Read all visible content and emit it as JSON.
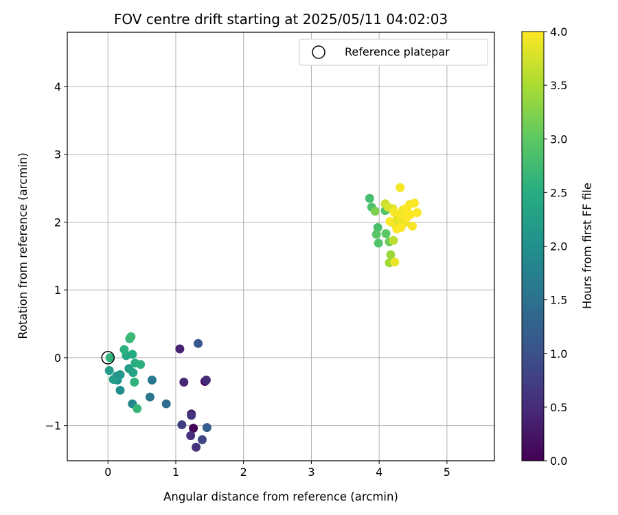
{
  "chart_data": {
    "type": "scatter",
    "title": "FOV centre drift starting at 2025/05/11 04:02:03",
    "xlabel": "Angular distance from reference (arcmin)",
    "ylabel": "Rotation from reference (arcmin)",
    "xlim": [
      -0.6,
      5.7
    ],
    "ylim": [
      -1.52,
      4.8
    ],
    "xticks": [
      0,
      1,
      2,
      3,
      4,
      5
    ],
    "yticks": [
      -1,
      0,
      1,
      2,
      3,
      4
    ],
    "grid": true,
    "legend": {
      "placement": "top-right",
      "entries": [
        "Reference platepar"
      ]
    },
    "reference_point": {
      "x": 0,
      "y": 0,
      "marker": "open-circle"
    },
    "colorbar": {
      "label": "Hours from first FF file",
      "colormap": "viridis",
      "range": [
        0.0,
        4.0
      ],
      "ticks": [
        "0.0",
        "0.5",
        "1.0",
        "1.5",
        "2.0",
        "2.5",
        "3.0",
        "3.5",
        "4.0"
      ]
    },
    "points": [
      {
        "x": 1.26,
        "y": -1.04,
        "t": 0.02
      },
      {
        "x": 1.43,
        "y": -0.35,
        "t": 0.1
      },
      {
        "x": 1.23,
        "y": -0.83,
        "t": 0.15
      },
      {
        "x": 1.06,
        "y": 0.13,
        "t": 0.4
      },
      {
        "x": 1.12,
        "y": -0.36,
        "t": 0.45
      },
      {
        "x": 1.45,
        "y": -0.33,
        "t": 0.5
      },
      {
        "x": 1.22,
        "y": -1.15,
        "t": 0.55
      },
      {
        "x": 1.3,
        "y": -1.32,
        "t": 0.6
      },
      {
        "x": 1.23,
        "y": -0.85,
        "t": 0.62
      },
      {
        "x": 1.09,
        "y": -0.99,
        "t": 0.75
      },
      {
        "x": 1.39,
        "y": -1.21,
        "t": 0.85
      },
      {
        "x": 1.33,
        "y": 0.21,
        "t": 1.1
      },
      {
        "x": 1.46,
        "y": -1.03,
        "t": 1.2
      },
      {
        "x": 0.86,
        "y": -0.68,
        "t": 1.4
      },
      {
        "x": 0.62,
        "y": -0.58,
        "t": 1.6
      },
      {
        "x": 0.65,
        "y": -0.33,
        "t": 1.65
      },
      {
        "x": 0.36,
        "y": -0.68,
        "t": 1.85
      },
      {
        "x": 0.18,
        "y": -0.48,
        "t": 1.95
      },
      {
        "x": 0.13,
        "y": -0.27,
        "t": 2.0
      },
      {
        "x": 0.14,
        "y": -0.33,
        "t": 2.05
      },
      {
        "x": 0.18,
        "y": -0.25,
        "t": 2.1
      },
      {
        "x": 0.02,
        "y": -0.19,
        "t": 2.2
      },
      {
        "x": 0.08,
        "y": -0.32,
        "t": 2.2
      },
      {
        "x": 0.31,
        "y": -0.16,
        "t": 2.25
      },
      {
        "x": 0.37,
        "y": -0.22,
        "t": 2.3
      },
      {
        "x": 0.27,
        "y": 0.03,
        "t": 2.4
      },
      {
        "x": 0.36,
        "y": 0.05,
        "t": 2.45
      },
      {
        "x": 0.4,
        "y": -0.08,
        "t": 2.5
      },
      {
        "x": 0.48,
        "y": -0.1,
        "t": 2.55
      },
      {
        "x": 0.24,
        "y": 0.12,
        "t": 2.55
      },
      {
        "x": 0.03,
        "y": 0.0,
        "t": 2.6
      },
      {
        "x": 0.39,
        "y": -0.36,
        "t": 2.6
      },
      {
        "x": 0.43,
        "y": -0.75,
        "t": 2.65
      },
      {
        "x": 0.32,
        "y": 0.28,
        "t": 2.65
      },
      {
        "x": 0.34,
        "y": 0.31,
        "t": 2.7
      },
      {
        "x": 3.86,
        "y": 2.35,
        "t": 2.8
      },
      {
        "x": 3.89,
        "y": 2.22,
        "t": 2.85
      },
      {
        "x": 3.98,
        "y": 1.92,
        "t": 2.85
      },
      {
        "x": 3.99,
        "y": 1.69,
        "t": 2.9
      },
      {
        "x": 4.09,
        "y": 2.17,
        "t": 2.9
      },
      {
        "x": 3.96,
        "y": 1.82,
        "t": 2.95
      },
      {
        "x": 4.1,
        "y": 1.83,
        "t": 3.0
      },
      {
        "x": 4.15,
        "y": 1.71,
        "t": 3.1
      },
      {
        "x": 3.94,
        "y": 2.16,
        "t": 3.2
      },
      {
        "x": 4.17,
        "y": 1.52,
        "t": 3.4
      },
      {
        "x": 4.15,
        "y": 1.4,
        "t": 3.45
      },
      {
        "x": 4.18,
        "y": 2.0,
        "t": 3.5
      },
      {
        "x": 4.21,
        "y": 1.73,
        "t": 3.6
      },
      {
        "x": 4.09,
        "y": 2.27,
        "t": 3.7
      },
      {
        "x": 4.13,
        "y": 2.22,
        "t": 3.75
      },
      {
        "x": 4.2,
        "y": 2.2,
        "t": 3.8
      },
      {
        "x": 4.25,
        "y": 1.95,
        "t": 3.85
      },
      {
        "x": 4.27,
        "y": 2.08,
        "t": 3.85
      },
      {
        "x": 4.23,
        "y": 1.41,
        "t": 3.9
      },
      {
        "x": 4.3,
        "y": 2.05,
        "t": 3.9
      },
      {
        "x": 4.35,
        "y": 2.18,
        "t": 3.9
      },
      {
        "x": 4.38,
        "y": 1.99,
        "t": 3.92
      },
      {
        "x": 4.22,
        "y": 2.15,
        "t": 3.95
      },
      {
        "x": 4.29,
        "y": 2.12,
        "t": 3.95
      },
      {
        "x": 4.31,
        "y": 2.51,
        "t": 3.95
      },
      {
        "x": 4.45,
        "y": 2.26,
        "t": 3.95
      },
      {
        "x": 4.49,
        "y": 1.94,
        "t": 3.97
      },
      {
        "x": 4.52,
        "y": 2.28,
        "t": 3.98
      },
      {
        "x": 4.56,
        "y": 2.14,
        "t": 3.98
      },
      {
        "x": 4.16,
        "y": 2.01,
        "t": 3.99
      },
      {
        "x": 4.32,
        "y": 1.92,
        "t": 4.0
      },
      {
        "x": 4.41,
        "y": 2.07,
        "t": 4.0
      },
      {
        "x": 4.46,
        "y": 2.11,
        "t": 4.0
      },
      {
        "x": 4.26,
        "y": 1.9,
        "t": 4.0
      },
      {
        "x": 4.4,
        "y": 2.2,
        "t": 4.0
      }
    ]
  }
}
